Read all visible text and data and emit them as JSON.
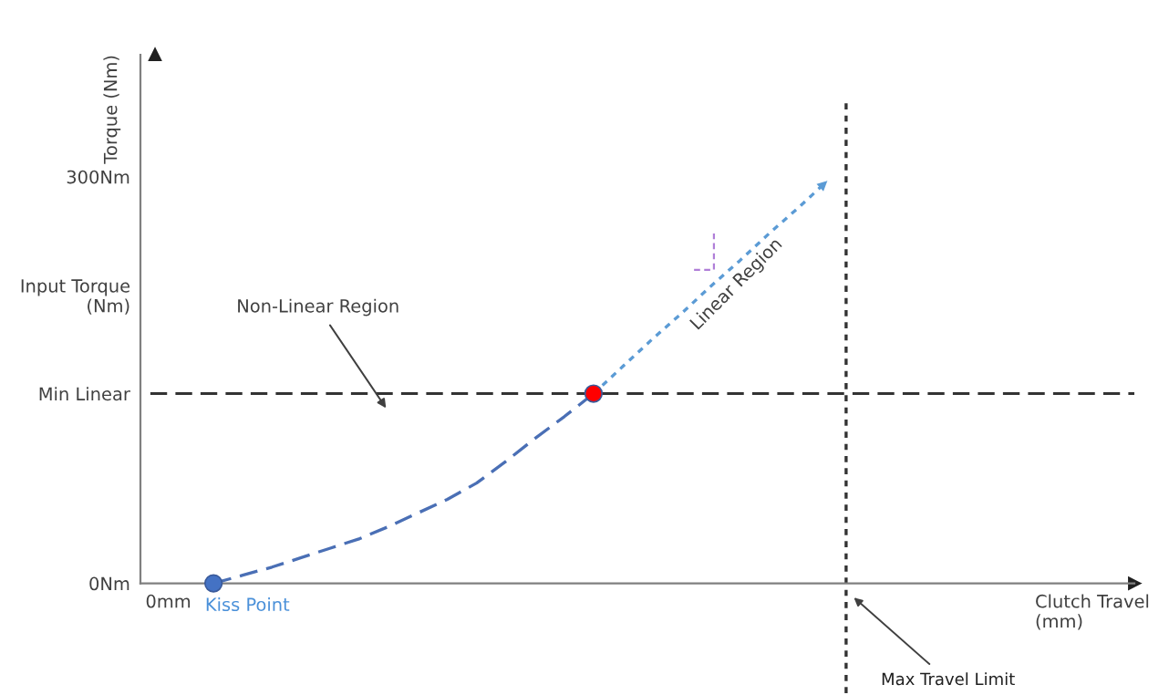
{
  "chart_data": {
    "type": "line",
    "ylabel": "Input Torque\n(Nm)",
    "xlabel": "Clutch Travel\n(mm)",
    "categories": [
      null,
      null,
      null,
      null,
      null,
      null,
      null,
      null,
      null,
      null,
      null,
      null,
      null,
      null,
      null,
      null,
      null,
      null,
      null,
      null,
      null,
      null,
      null,
      null,
      null,
      null,
      null,
      null,
      null,
      null,
      null,
      null,
      null,
      null
    ],
    "ylim": [
      -81,
      390
    ],
    "yticks": [
      {
        "value": 0,
        "label": "0Nm"
      },
      {
        "value": 140,
        "label": "Min Linear"
      },
      {
        "value": 300,
        "label": "300Nm"
      }
    ],
    "marker": "none",
    "series": [
      {
        "color": "#4a6fb5",
        "line_style": "dashed",
        "values": [
          null,
          null,
          0,
          6,
          12,
          19,
          26,
          33,
          42,
          52,
          62,
          74,
          90,
          107,
          123,
          140,
          null,
          null,
          null,
          null,
          null,
          null,
          null,
          null,
          null,
          null,
          null,
          null,
          null,
          null,
          null,
          null,
          null,
          null
        ]
      },
      {
        "color": "#5b9bd5",
        "line_style": "dotted",
        "values": [
          null,
          null,
          null,
          null,
          null,
          null,
          null,
          null,
          null,
          null,
          null,
          null,
          null,
          null,
          null,
          140,
          160,
          180,
          199,
          219,
          238,
          258,
          277,
          297,
          null,
          null,
          null,
          null,
          null,
          null,
          null,
          null,
          null,
          null
        ]
      },
      {
        "type": "scatter",
        "color": "#4472c4",
        "marker": "circle",
        "values": [
          null,
          null,
          0,
          null,
          null,
          null,
          null,
          null,
          null,
          null,
          null,
          null,
          null,
          null,
          null,
          null,
          null,
          null,
          null,
          null,
          null,
          null,
          null,
          null,
          null,
          null,
          null,
          null,
          null,
          null,
          null,
          null,
          null,
          null
        ]
      },
      {
        "type": "scatter",
        "color": "#ff0000",
        "marker": "circle",
        "values": [
          null,
          null,
          null,
          null,
          null,
          null,
          null,
          null,
          null,
          null,
          null,
          null,
          null,
          null,
          null,
          140,
          null,
          null,
          null,
          null,
          null,
          null,
          null,
          null,
          null,
          null,
          null,
          null,
          null,
          null,
          null,
          null,
          null,
          null
        ]
      }
    ],
    "ref_lines": [
      {
        "axis": "y",
        "value": 140,
        "color": "#333333",
        "line_style": "dashed"
      }
    ],
    "annotations": [
      "Torque (Nm)",
      "0mm",
      "Non-Linear Region",
      "Linear Region",
      "Kiss Point",
      "Max Travel Limit"
    ]
  }
}
